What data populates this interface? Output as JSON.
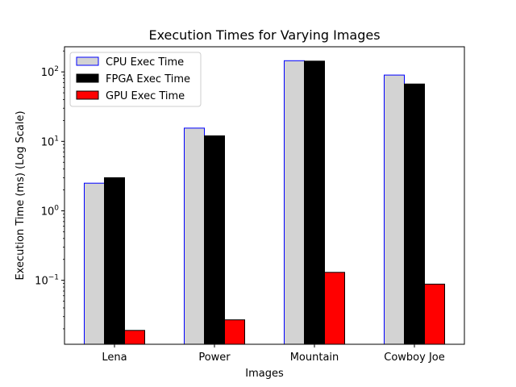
{
  "chart_data": {
    "type": "bar",
    "title": "Execution Times for Varying Images",
    "xlabel": "Images",
    "ylabel": "Execution Time (ms) (Log Scale)",
    "yscale": "log",
    "ylim": [
      0.012,
      230
    ],
    "yticks": [
      {
        "value": 0.1,
        "base": "10",
        "exp": "−1"
      },
      {
        "value": 1,
        "base": "10",
        "exp": "0"
      },
      {
        "value": 10,
        "base": "10",
        "exp": "1"
      },
      {
        "value": 100,
        "base": "10",
        "exp": "2"
      }
    ],
    "categories": [
      "Lena",
      "Power",
      "Mountain",
      "Cowboy Joe"
    ],
    "series": [
      {
        "name": "CPU Exec Time",
        "values": [
          2.5,
          15.5,
          145,
          90
        ],
        "fill": "#d3d3d3",
        "stroke": "#0000ff"
      },
      {
        "name": "FPGA Exec Time",
        "values": [
          3.0,
          12.0,
          143,
          67
        ],
        "fill": "#000000",
        "stroke": "#000000"
      },
      {
        "name": "GPU Exec Time",
        "values": [
          0.019,
          0.027,
          0.13,
          0.088
        ],
        "fill": "#ff0000",
        "stroke": "#000000"
      }
    ],
    "legend": "top-left",
    "grid": false
  }
}
